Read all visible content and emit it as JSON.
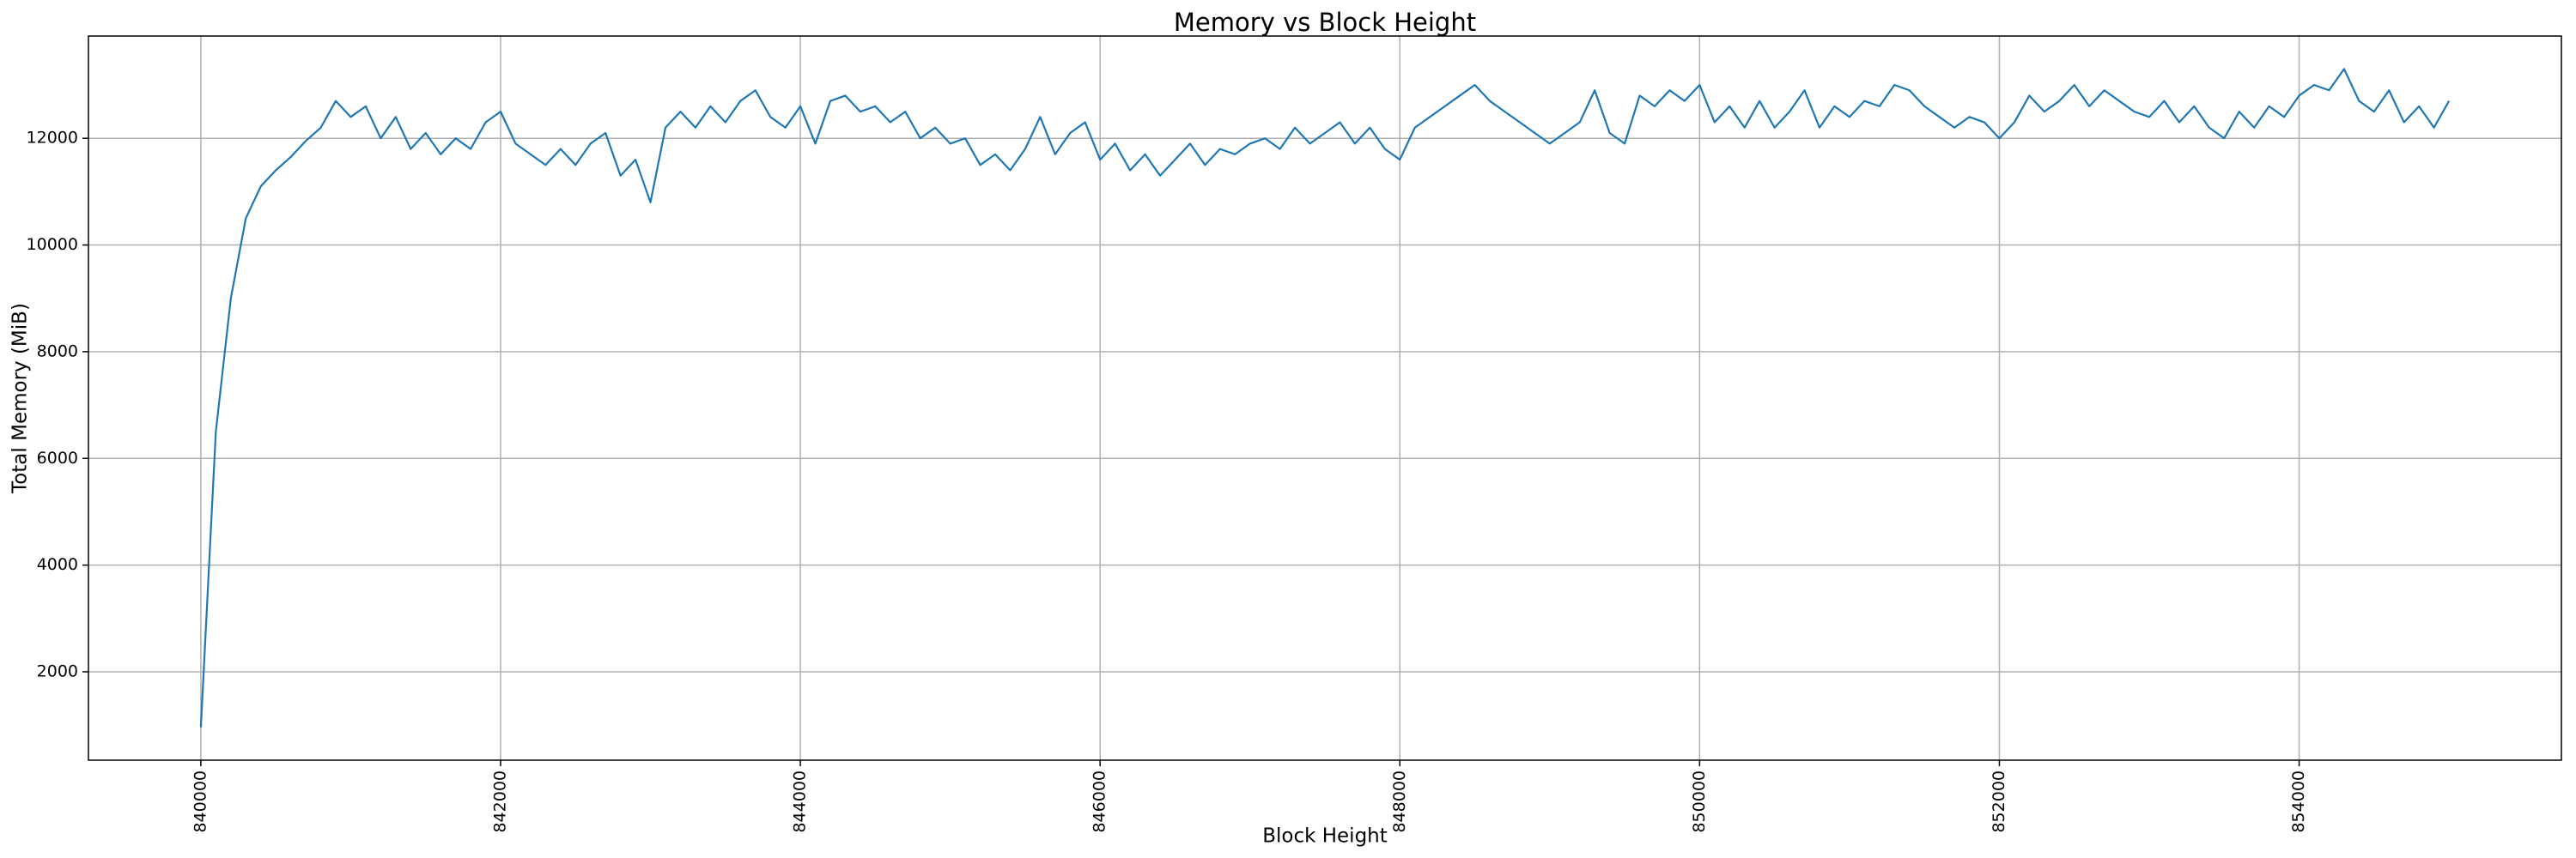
{
  "chart_data": {
    "type": "line",
    "title": "Memory vs Block Height",
    "xlabel": "Block Height",
    "ylabel": "Total Memory (MiB)",
    "x": [
      840000,
      840100,
      840200,
      840300,
      840400,
      840500,
      840600,
      840700,
      840800,
      840900,
      841000,
      841100,
      841200,
      841300,
      841400,
      841500,
      841600,
      841700,
      841800,
      841900,
      842000,
      842100,
      842200,
      842300,
      842400,
      842500,
      842600,
      842700,
      842800,
      842900,
      843000,
      843100,
      843200,
      843300,
      843400,
      843500,
      843600,
      843700,
      843800,
      843900,
      844000,
      844100,
      844200,
      844300,
      844400,
      844500,
      844600,
      844700,
      844800,
      844900,
      845000,
      845100,
      845200,
      845300,
      845400,
      845500,
      845600,
      845700,
      845800,
      845900,
      846000,
      846100,
      846200,
      846300,
      846400,
      846500,
      846600,
      846700,
      846800,
      846900,
      847000,
      847100,
      847200,
      847300,
      847400,
      847500,
      847600,
      847700,
      847800,
      847900,
      848000,
      848100,
      848200,
      848300,
      848400,
      848500,
      848600,
      848700,
      848800,
      848900,
      849000,
      849100,
      849200,
      849300,
      849400,
      849500,
      849600,
      849700,
      849800,
      849900,
      850000,
      850100,
      850200,
      850300,
      850400,
      850500,
      850600,
      850700,
      850800,
      850900,
      851000,
      851100,
      851200,
      851300,
      851400,
      851500,
      851600,
      851700,
      851800,
      851900,
      852000,
      852100,
      852200,
      852300,
      852400,
      852500,
      852600,
      852700,
      852800,
      852900,
      853000,
      853100,
      853200,
      853300,
      853400,
      853500,
      853600,
      853700,
      853800,
      853900,
      854000,
      854100,
      854200,
      854300,
      854400,
      854500,
      854600,
      854700,
      854800,
      854900,
      855000
    ],
    "series": [
      {
        "color": "#1f77b4",
        "values": [
          960,
          6500,
          9000,
          10500,
          11100,
          11400,
          11650,
          11950,
          12200,
          12700,
          12400,
          12600,
          12000,
          12400,
          11800,
          12100,
          11700,
          12000,
          11800,
          12300,
          12500,
          11900,
          11700,
          11500,
          11800,
          11500,
          11900,
          12100,
          11300,
          11600,
          10800,
          12200,
          12500,
          12200,
          12600,
          12300,
          12700,
          12900,
          12400,
          12200,
          12600,
          11900,
          12700,
          12800,
          12500,
          12600,
          12300,
          12500,
          12000,
          12200,
          11900,
          12000,
          11500,
          11700,
          11400,
          11800,
          12400,
          11700,
          12100,
          12300,
          11600,
          11900,
          11400,
          11700,
          11300,
          11600,
          11900,
          11500,
          11800,
          11700,
          11900,
          12000,
          11800,
          12200,
          11900,
          12100,
          12300,
          11900,
          12200,
          11800,
          11600,
          12200,
          12400,
          12600,
          12800,
          13000,
          12700,
          12500,
          12300,
          12100,
          11900,
          12100,
          12300,
          12900,
          12100,
          11900,
          12800,
          12600,
          12900,
          12700,
          13000,
          12300,
          12600,
          12200,
          12700,
          12200,
          12500,
          12900,
          12200,
          12600,
          12400,
          12700,
          12600,
          13000,
          12900,
          12600,
          12400,
          12200,
          12400,
          12300,
          12000,
          12300,
          12800,
          12500,
          12700,
          13000,
          12600,
          12900,
          12700,
          12500,
          12400,
          12700,
          12300,
          12600,
          12200,
          12000,
          12500,
          12200,
          12600,
          12400,
          12800,
          13000,
          12900,
          13300,
          12700,
          12500,
          12900,
          12300,
          12600,
          12200,
          12700
        ]
      }
    ],
    "xlim": [
      839250,
      855750
    ],
    "ylim": [
      343,
      13917
    ],
    "xticks": [
      840000,
      842000,
      844000,
      846000,
      848000,
      850000,
      852000,
      854000
    ],
    "yticks": [
      2000,
      4000,
      6000,
      8000,
      10000,
      12000
    ],
    "grid": true
  }
}
